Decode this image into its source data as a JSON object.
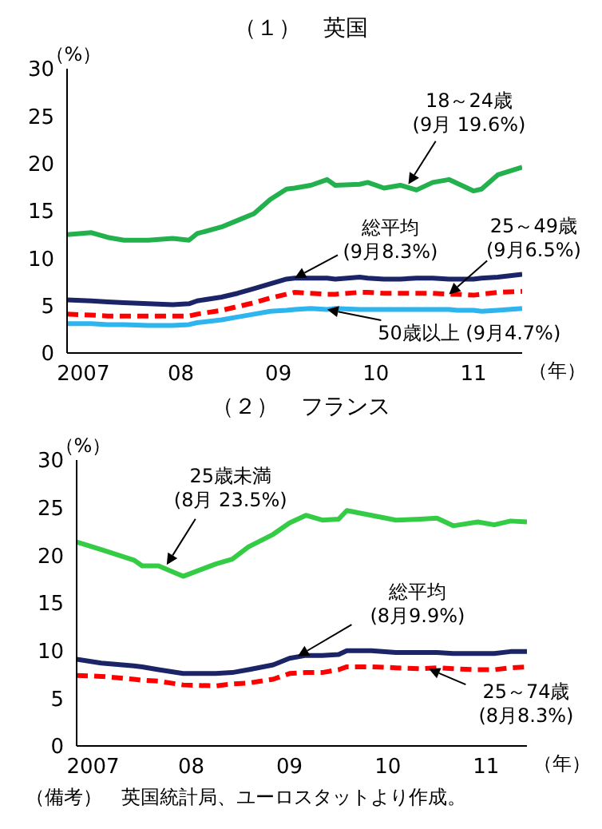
{
  "chart_data": [
    {
      "type": "line",
      "title": "（１）　英国",
      "ylabel": "（%）",
      "xlabel": "（年）",
      "x": [
        "2007-01",
        "2007-04",
        "2007-06",
        "2007-08",
        "2007-11",
        "2008-02",
        "2008-04",
        "2008-05",
        "2008-08",
        "2008-10",
        "2008-12",
        "2009-02",
        "2009-04",
        "2009-05",
        "2009-07",
        "2009-09",
        "2009-10",
        "2010-01",
        "2010-02",
        "2010-04",
        "2010-06",
        "2010-08",
        "2010-10",
        "2010-12",
        "2011-01",
        "2011-03",
        "2011-04",
        "2011-06",
        "2011-09"
      ],
      "series": [
        {
          "color": "#22b14c",
          "values": [
            12.5,
            12.7,
            12.2,
            11.9,
            11.9,
            12.1,
            11.9,
            12.6,
            13.3,
            14.0,
            14.7,
            16.2,
            17.3,
            17.4,
            17.7,
            18.3,
            17.7,
            17.8,
            18.0,
            17.4,
            17.7,
            17.2,
            18.0,
            18.3,
            17.9,
            17.1,
            17.3,
            18.8,
            19.6
          ]
        },
        {
          "color": "#1a2466",
          "values": [
            5.6,
            5.5,
            5.4,
            5.3,
            5.2,
            5.1,
            5.2,
            5.5,
            5.9,
            6.3,
            6.8,
            7.3,
            7.8,
            7.9,
            7.9,
            7.9,
            7.8,
            8.0,
            7.9,
            7.8,
            7.8,
            7.9,
            7.9,
            7.8,
            7.8,
            7.8,
            7.9,
            8.0,
            8.3
          ]
        },
        {
          "color": "#ff0000",
          "line_style": "dashed",
          "values": [
            4.1,
            4.0,
            3.9,
            3.9,
            3.9,
            3.9,
            3.9,
            4.1,
            4.5,
            4.9,
            5.3,
            5.8,
            6.2,
            6.4,
            6.3,
            6.2,
            6.2,
            6.4,
            6.4,
            6.3,
            6.3,
            6.3,
            6.3,
            6.2,
            6.2,
            6.1,
            6.2,
            6.4,
            6.5
          ]
        },
        {
          "color": "#2eb4ee",
          "values": [
            3.1,
            3.1,
            3.0,
            3.0,
            2.9,
            2.9,
            3.0,
            3.2,
            3.5,
            3.8,
            4.1,
            4.4,
            4.5,
            4.6,
            4.7,
            4.6,
            4.7,
            4.6,
            4.6,
            4.6,
            4.6,
            4.6,
            4.6,
            4.6,
            4.5,
            4.5,
            4.4,
            4.5,
            4.7
          ]
        }
      ],
      "xlim": [
        "2007-01",
        "2011-09"
      ],
      "xticks": [
        {
          "value": "2007-03",
          "label": "2007"
        },
        {
          "value": "2008-03",
          "label": "08"
        },
        {
          "value": "2009-03",
          "label": "09"
        },
        {
          "value": "2010-03",
          "label": "10"
        },
        {
          "value": "2011-03",
          "label": "11"
        }
      ],
      "ylim": [
        0,
        30
      ],
      "yticks": [
        0,
        5,
        10,
        15,
        20,
        25,
        30
      ],
      "annotations": [
        {
          "text": "18～24歳\n(9月 19.6%)",
          "x": "2010-07",
          "y": 17.8
        },
        {
          "text": "総平均\n(9月8.3%)",
          "x": "2009-05",
          "y": 7.9
        },
        {
          "text": "25～49歳\n(9月6.5%)",
          "x": "2010-12",
          "y": 6.2
        },
        {
          "text": "50歳以上 (9月4.7%)",
          "x": "2009-09",
          "y": 4.6
        }
      ]
    },
    {
      "type": "line",
      "title": "（２）　フランス",
      "ylabel": "（%）",
      "xlabel": "（年）",
      "x": [
        "2007-01",
        "2007-04",
        "2007-08",
        "2007-09",
        "2007-11",
        "2008-02",
        "2008-06",
        "2008-08",
        "2008-10",
        "2009-01",
        "2009-03",
        "2009-05",
        "2009-07",
        "2009-09",
        "2009-10",
        "2010-01",
        "2010-04",
        "2010-07",
        "2010-09",
        "2010-11",
        "2011-02",
        "2011-04",
        "2011-06",
        "2011-08"
      ],
      "series": [
        {
          "color": "#33cc44",
          "values": [
            21.4,
            20.6,
            19.5,
            18.9,
            18.9,
            17.8,
            19.1,
            19.6,
            20.9,
            22.2,
            23.4,
            24.2,
            23.7,
            23.8,
            24.7,
            24.2,
            23.7,
            23.8,
            23.9,
            23.1,
            23.5,
            23.2,
            23.6,
            23.5
          ]
        },
        {
          "color": "#1a2466",
          "values": [
            9.1,
            8.7,
            8.4,
            8.3,
            8.0,
            7.6,
            7.6,
            7.7,
            8.0,
            8.5,
            9.2,
            9.5,
            9.5,
            9.6,
            10.0,
            10.0,
            9.8,
            9.8,
            9.8,
            9.7,
            9.7,
            9.7,
            9.9,
            9.9
          ]
        },
        {
          "color": "#ff0000",
          "line_style": "dashed",
          "values": [
            7.4,
            7.3,
            7.0,
            6.9,
            6.8,
            6.4,
            6.3,
            6.5,
            6.6,
            7.0,
            7.6,
            7.7,
            7.7,
            8.0,
            8.3,
            8.3,
            8.2,
            8.1,
            8.2,
            8.1,
            8.0,
            8.0,
            8.2,
            8.3
          ]
        }
      ],
      "xlim": [
        "2007-01",
        "2011-08"
      ],
      "xticks": [
        {
          "value": "2007-03",
          "label": "2007"
        },
        {
          "value": "2008-03",
          "label": "08"
        },
        {
          "value": "2009-03",
          "label": "09"
        },
        {
          "value": "2010-03",
          "label": "10"
        },
        {
          "value": "2011-03",
          "label": "11"
        }
      ],
      "ylim": [
        0,
        30
      ],
      "yticks": [
        0,
        5,
        10,
        15,
        20,
        25,
        30
      ],
      "annotations": [
        {
          "text": "25歳未満\n(8月 23.5%)",
          "x": "2007-12",
          "y": 19.0
        },
        {
          "text": "総平均\n(8月9.9%)",
          "x": "2009-04",
          "y": 9.4
        },
        {
          "text": "25～74歳\n(8月8.3%)",
          "x": "2010-08",
          "y": 8.1
        },
        "（備考）　英国統計局、ユーロスタットより作成。"
      ]
    }
  ]
}
